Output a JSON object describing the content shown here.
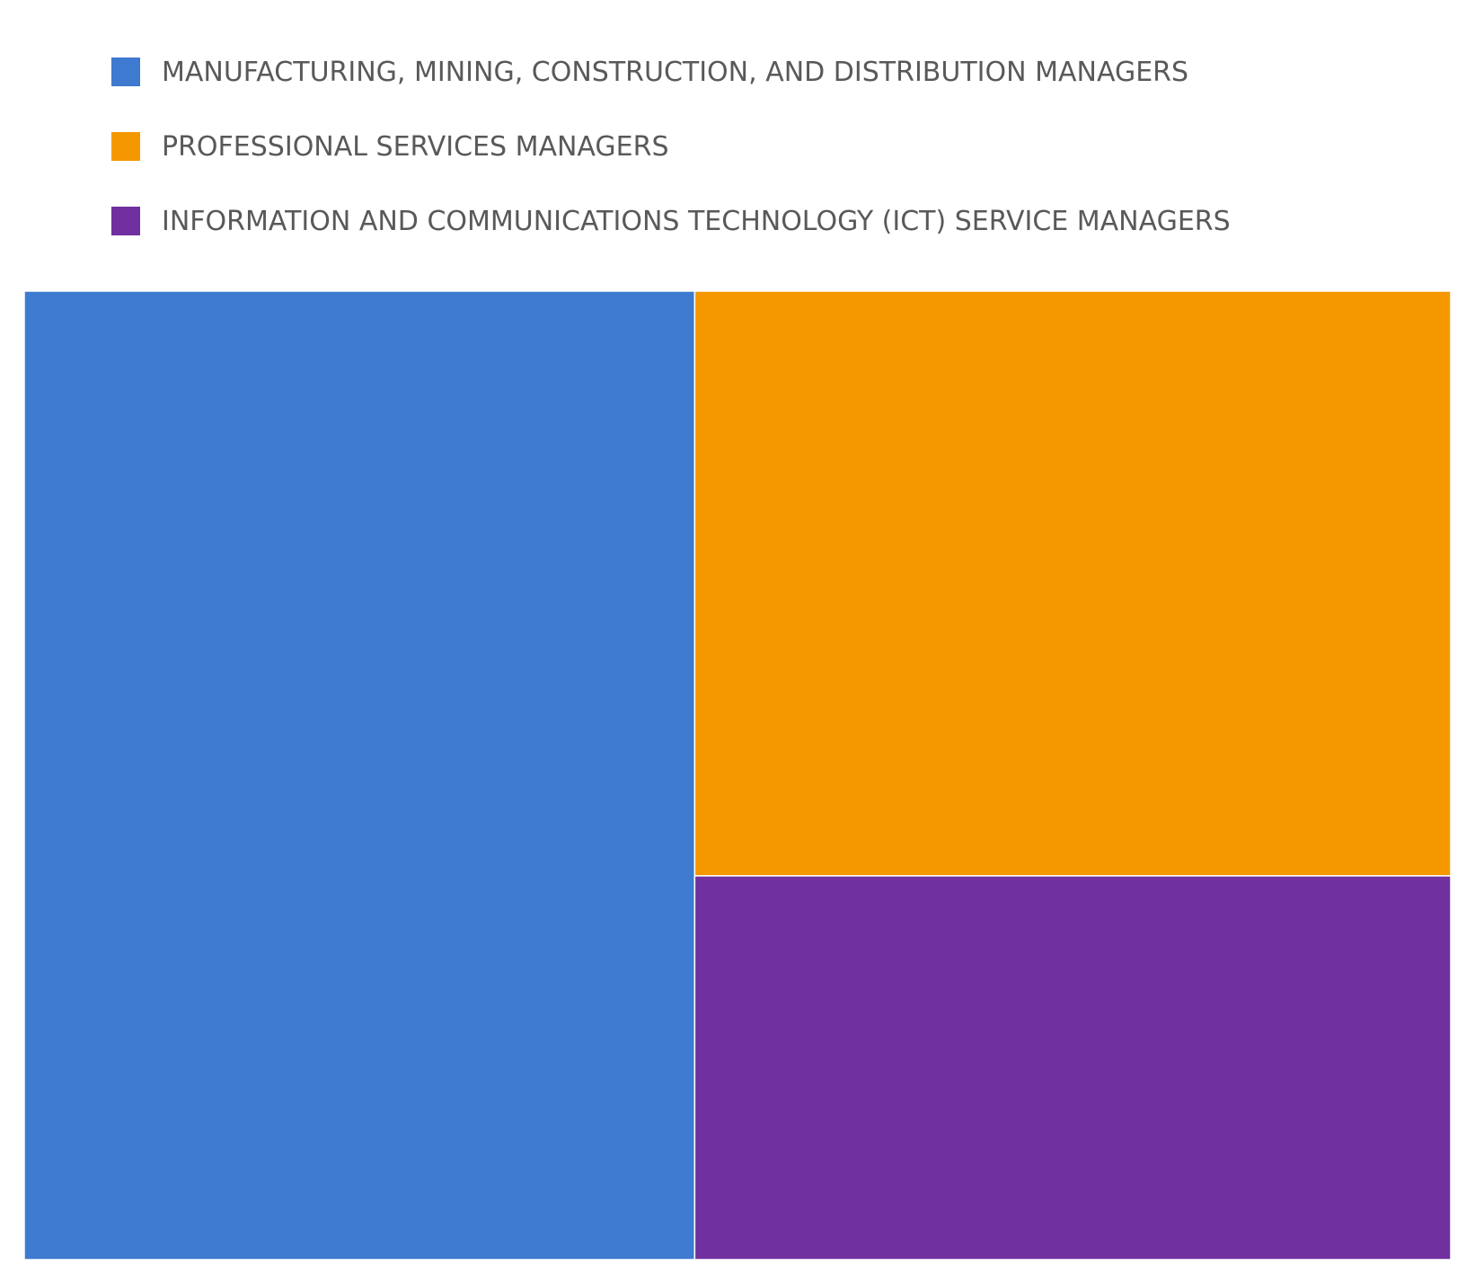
{
  "chart_data": {
    "type": "treemap",
    "title": "",
    "legend_position": "top",
    "series": [
      {
        "name": "MANUFACTURING, MINING, CONSTRUCTION, AND DISTRIBUTION MANAGERS",
        "value": 47,
        "color": "#3E7ACF"
      },
      {
        "name": "PROFESSIONAL SERVICES MANAGERS",
        "value": 32,
        "color": "#F59800"
      },
      {
        "name": "INFORMATION AND COMMUNICATIONS TECHNOLOGY (ICT) SERVICE MANAGERS",
        "value": 21,
        "color": "#7030A0"
      }
    ]
  }
}
